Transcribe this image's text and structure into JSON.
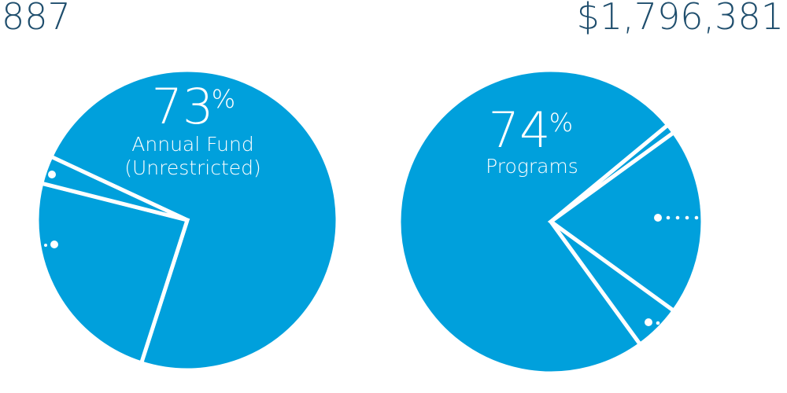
{
  "totals": {
    "left": "887",
    "right": "$1,796,381"
  },
  "colors": {
    "slice": "#00a0dc",
    "separator": "#ffffff",
    "total_text": "#1f4e6d"
  },
  "chart_data": [
    {
      "type": "pie",
      "labels": [
        "Annual Fund (Unrestricted)",
        "",
        ""
      ],
      "values": [
        73,
        24,
        3
      ],
      "callout": {
        "value": "73",
        "unit": "%",
        "label_lines": [
          "Annual Fund",
          "(Unrestricted)"
        ]
      }
    },
    {
      "type": "pie",
      "labels": [
        "Programs",
        "",
        "",
        ""
      ],
      "values": [
        74,
        1,
        20,
        5
      ],
      "callout": {
        "value": "74",
        "unit": "%",
        "label_lines": [
          "Programs"
        ]
      }
    }
  ]
}
